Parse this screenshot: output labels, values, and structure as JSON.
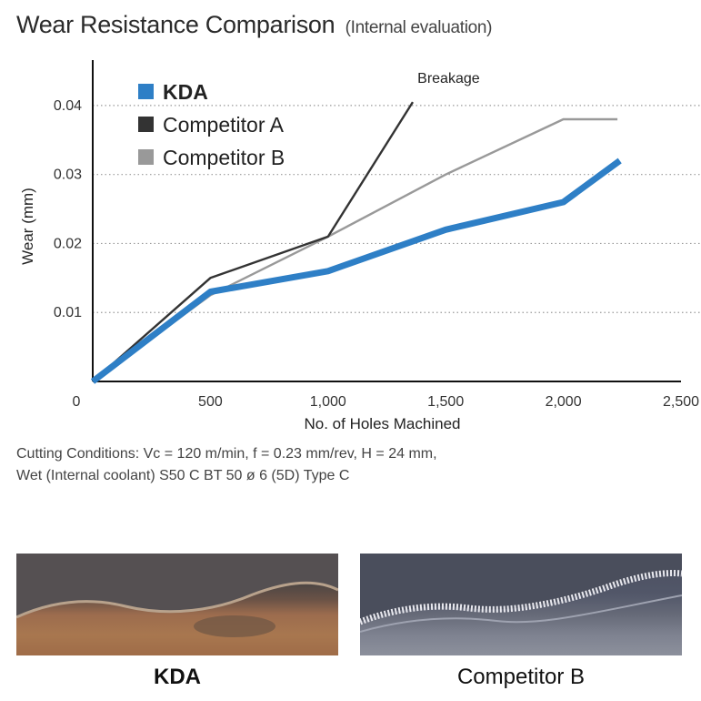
{
  "header": {
    "title": "Wear Resistance Comparison",
    "subtitle": "(Internal evaluation)"
  },
  "chart_data": {
    "type": "line",
    "title": "Wear Resistance Comparison",
    "xlabel": "No. of Holes Machined",
    "ylabel": "Wear (mm)",
    "xlim": [
      0,
      2500
    ],
    "ylim": [
      0,
      0.045
    ],
    "xticks": [
      0,
      500,
      1000,
      1500,
      2000,
      2500
    ],
    "xtick_labels": [
      "0",
      "500",
      "1,000",
      "1,500",
      "2,000",
      "2,500"
    ],
    "yticks": [
      0.01,
      0.02,
      0.03,
      0.04
    ],
    "ytick_labels": [
      "0.01",
      "0.02",
      "0.03",
      "0.04"
    ],
    "grid": "horizontal dotted",
    "legend_position": "top-left",
    "series": [
      {
        "name": "KDA",
        "color": "#2e7fc6",
        "points": [
          [
            0,
            0
          ],
          [
            500,
            0.013
          ],
          [
            1000,
            0.016
          ],
          [
            1500,
            0.022
          ],
          [
            2000,
            0.026
          ],
          [
            2240,
            0.032
          ]
        ]
      },
      {
        "name": "Competitor A",
        "color": "#333333",
        "points": [
          [
            0,
            0
          ],
          [
            500,
            0.015
          ],
          [
            1000,
            0.021
          ],
          [
            1360,
            0.0405
          ]
        ]
      },
      {
        "name": "Competitor B",
        "color": "#999999",
        "points": [
          [
            0,
            0
          ],
          [
            500,
            0.0125
          ],
          [
            1000,
            0.021
          ],
          [
            1500,
            0.03
          ],
          [
            2000,
            0.038
          ],
          [
            2230,
            0.038
          ]
        ]
      }
    ],
    "annotations": [
      {
        "text": "Breakage",
        "x": 1380,
        "y": 0.0425
      }
    ]
  },
  "conditions": {
    "line1": "Cutting Conditions: Vc = 120 m/min, f = 0.23 mm/rev, H = 24 mm,",
    "line2": "Wet (Internal coolant)  S50 C  BT 50 ø 6 (5D)  Type C"
  },
  "photos": {
    "left_caption": "KDA",
    "right_caption": "Competitor B"
  }
}
